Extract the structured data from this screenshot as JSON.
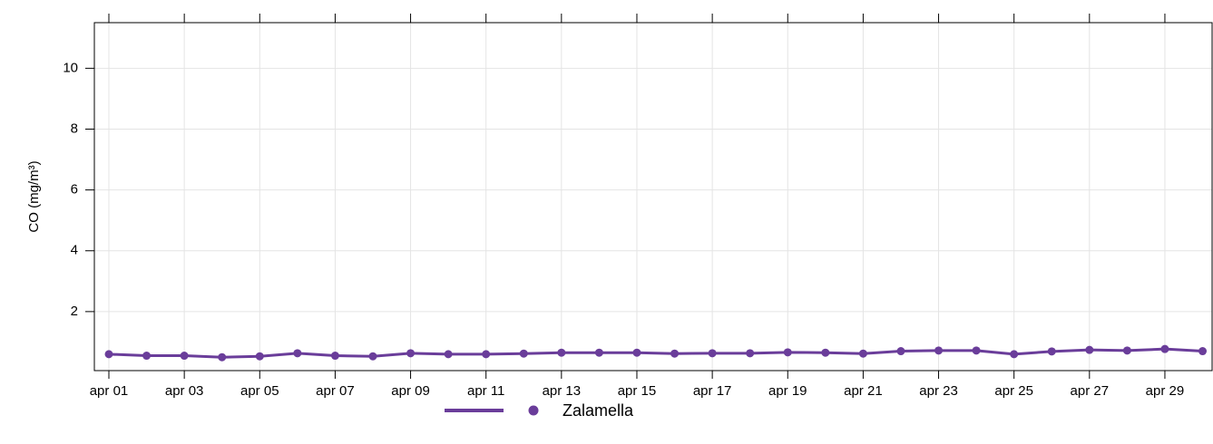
{
  "chart_data": {
    "type": "line",
    "y_label": "CO (mg/m³)",
    "categories": [
      "apr 01",
      null,
      "apr 03",
      null,
      "apr 05",
      null,
      "apr 07",
      null,
      "apr 09",
      null,
      "apr 11",
      null,
      "apr 13",
      null,
      "apr 15",
      null,
      "apr 17",
      null,
      "apr 19",
      null,
      "apr 21",
      null,
      "apr 23",
      null,
      "apr 25",
      null,
      "apr 27",
      null,
      "apr 29",
      null
    ],
    "series": [
      {
        "name": "Zalamella",
        "color": "#6a3d9a",
        "values": [
          0.6,
          0.55,
          0.55,
          0.5,
          0.53,
          0.63,
          0.55,
          0.53,
          0.63,
          0.6,
          0.6,
          0.62,
          0.65,
          0.65,
          0.65,
          0.62,
          0.63,
          0.63,
          0.66,
          0.65,
          0.62,
          0.7,
          0.72,
          0.72,
          0.6,
          0.69,
          0.74,
          0.72,
          0.77,
          0.7
        ]
      }
    ],
    "ylim": [
      0.06,
      11.5
    ],
    "yticks": [
      2,
      4,
      6,
      8,
      10
    ],
    "grid": true
  }
}
